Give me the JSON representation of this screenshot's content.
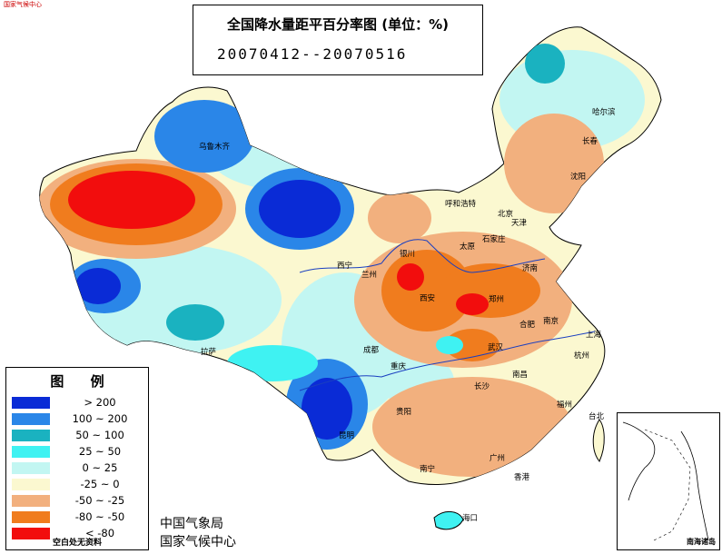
{
  "header_mark": "国家气候中心",
  "title": {
    "main": "全国降水量距平百分率图 (单位：%)",
    "period": "20070412--20070516"
  },
  "legend": {
    "title": "图 例",
    "items": [
      {
        "label": "> 200",
        "color": "#0a2bd6"
      },
      {
        "label": "100 ~ 200",
        "color": "#2a86e8"
      },
      {
        "label": "50 ~ 100",
        "color": "#1ab2c0"
      },
      {
        "label": "25 ~ 50",
        "color": "#3ff2f2"
      },
      {
        "label": "0 ~ 25",
        "color": "#c2f6f2"
      },
      {
        "label": "-25 ~ 0",
        "color": "#fbf8d0"
      },
      {
        "label": "-50 ~ -25",
        "color": "#f2b07e"
      },
      {
        "label": "-80 ~ -50",
        "color": "#f07c1e"
      },
      {
        "label": "< -80",
        "color": "#f20d0d"
      }
    ],
    "note": "空白处无资料"
  },
  "agency": {
    "line1": "中国气象局",
    "line2": "国家气候中心"
  },
  "inset_label": "南海诸岛",
  "cities": [
    {
      "name": "乌鲁木齐"
    },
    {
      "name": "哈尔滨"
    },
    {
      "name": "长春"
    },
    {
      "name": "沈阳"
    },
    {
      "name": "呼和浩特"
    },
    {
      "name": "北京"
    },
    {
      "name": "天津"
    },
    {
      "name": "石家庄"
    },
    {
      "name": "太原"
    },
    {
      "name": "银川"
    },
    {
      "name": "西宁"
    },
    {
      "name": "兰州"
    },
    {
      "name": "济南"
    },
    {
      "name": "西安"
    },
    {
      "name": "郑州"
    },
    {
      "name": "合肥"
    },
    {
      "name": "南京"
    },
    {
      "name": "上海"
    },
    {
      "name": "拉萨"
    },
    {
      "name": "成都"
    },
    {
      "name": "重庆"
    },
    {
      "name": "武汉"
    },
    {
      "name": "杭州"
    },
    {
      "name": "南昌"
    },
    {
      "name": "长沙"
    },
    {
      "name": "福州"
    },
    {
      "name": "贵阳"
    },
    {
      "name": "昆明"
    },
    {
      "name": "台北"
    },
    {
      "name": "广州"
    },
    {
      "name": "南宁"
    },
    {
      "name": "香港"
    },
    {
      "name": "海口"
    }
  ]
}
